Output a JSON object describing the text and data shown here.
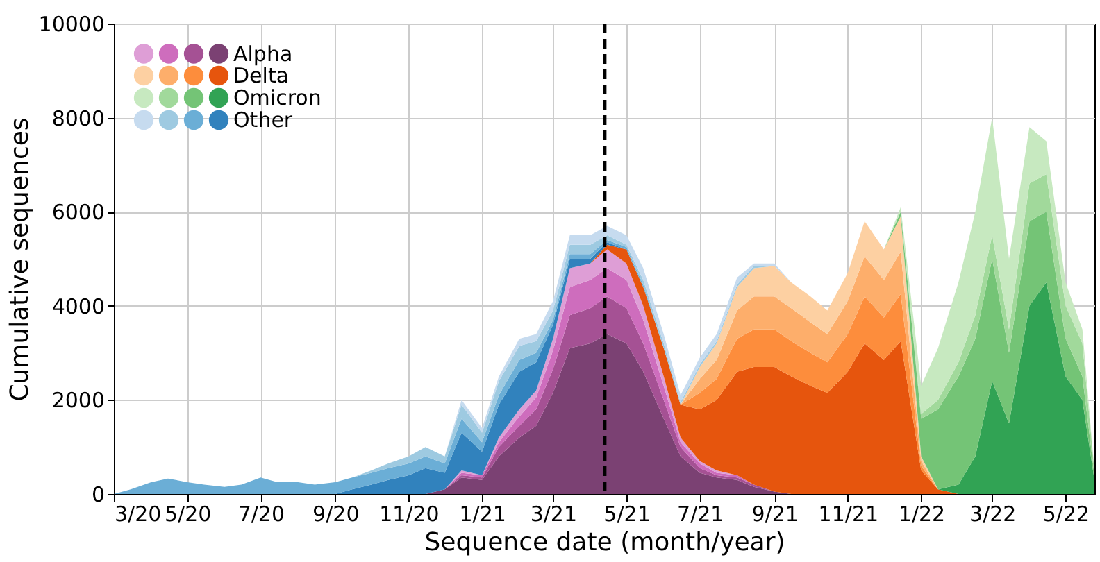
{
  "chart_data": {
    "type": "area",
    "stacked": true,
    "xlabel": "Sequence date (month/year)",
    "ylabel": "Cumulative sequences",
    "x": [
      "2020-03-01",
      "2020-03-15",
      "2020-04-01",
      "2020-04-15",
      "2020-05-01",
      "2020-05-15",
      "2020-06-01",
      "2020-06-15",
      "2020-07-01",
      "2020-07-15",
      "2020-08-01",
      "2020-08-15",
      "2020-09-01",
      "2020-09-15",
      "2020-10-01",
      "2020-10-15",
      "2020-11-01",
      "2020-11-15",
      "2020-12-01",
      "2020-12-15",
      "2021-01-01",
      "2021-01-15",
      "2021-02-01",
      "2021-02-15",
      "2021-03-01",
      "2021-03-15",
      "2021-04-01",
      "2021-04-15",
      "2021-05-01",
      "2021-05-15",
      "2021-06-01",
      "2021-06-15",
      "2021-07-01",
      "2021-07-15",
      "2021-08-01",
      "2021-08-15",
      "2021-09-01",
      "2021-09-15",
      "2021-10-01",
      "2021-10-15",
      "2021-11-01",
      "2021-11-15",
      "2021-12-01",
      "2021-12-15",
      "2022-01-01",
      "2022-01-15",
      "2022-02-01",
      "2022-02-15",
      "2022-03-01",
      "2022-03-15",
      "2022-04-01",
      "2022-04-15",
      "2022-05-01",
      "2022-05-15",
      "2022-05-25"
    ],
    "series": [
      {
        "name": "Alpha",
        "color": "#7b4173",
        "values": [
          null,
          null,
          null,
          null,
          null,
          null,
          null,
          null,
          null,
          null,
          null,
          null,
          null,
          null,
          null,
          null,
          null,
          0,
          100,
          350,
          300,
          800,
          1200,
          1450,
          2150,
          3100,
          3200,
          3400,
          3200,
          2600,
          1600,
          800,
          450,
          350,
          300,
          150,
          50,
          0,
          null,
          null,
          null,
          null,
          null,
          null,
          null,
          null,
          null,
          null,
          null,
          null,
          null,
          null,
          null,
          null,
          null
        ]
      },
      {
        "color": "#a55194",
        "values": [
          null,
          null,
          null,
          null,
          null,
          null,
          null,
          null,
          null,
          null,
          null,
          null,
          null,
          null,
          null,
          null,
          null,
          null,
          0,
          50,
          50,
          200,
          250,
          350,
          500,
          700,
          750,
          800,
          750,
          600,
          400,
          200,
          100,
          50,
          50,
          50,
          0,
          null,
          null,
          null,
          null,
          null,
          null,
          null,
          null,
          null,
          null,
          null,
          null,
          null,
          null,
          null,
          null,
          null,
          null
        ]
      },
      {
        "color": "#ce6dbd",
        "values": [
          null,
          null,
          null,
          null,
          null,
          null,
          null,
          null,
          null,
          null,
          null,
          null,
          null,
          null,
          null,
          null,
          null,
          null,
          0,
          50,
          50,
          100,
          200,
          250,
          400,
          600,
          600,
          600,
          600,
          500,
          300,
          100,
          100,
          50,
          50,
          0,
          null,
          null,
          null,
          null,
          null,
          null,
          null,
          null,
          null,
          null,
          null,
          null,
          null,
          null,
          null,
          null,
          null,
          null,
          null
        ]
      },
      {
        "color": "#de9ed6",
        "values": [
          null,
          null,
          null,
          null,
          null,
          null,
          null,
          null,
          null,
          null,
          null,
          null,
          null,
          null,
          null,
          null,
          null,
          null,
          0,
          50,
          0,
          100,
          150,
          150,
          250,
          400,
          350,
          400,
          350,
          300,
          200,
          100,
          50,
          50,
          0,
          null,
          null,
          null,
          null,
          null,
          null,
          null,
          null,
          null,
          null,
          null,
          null,
          null,
          null,
          null,
          null,
          null,
          null,
          null,
          null
        ]
      },
      {
        "name": "Delta",
        "color": "#e6550d",
        "values": [
          null,
          null,
          null,
          null,
          null,
          null,
          null,
          null,
          null,
          null,
          null,
          null,
          null,
          null,
          null,
          null,
          null,
          null,
          null,
          null,
          null,
          null,
          null,
          null,
          null,
          null,
          0,
          100,
          300,
          400,
          600,
          700,
          1100,
          1500,
          2200,
          2500,
          2650,
          2500,
          2300,
          2150,
          2600,
          3200,
          2850,
          3250,
          500,
          100,
          0,
          null,
          null,
          null,
          null,
          null,
          null,
          null,
          null
        ]
      },
      {
        "color": "#fd8d3c",
        "values": [
          null,
          null,
          null,
          null,
          null,
          null,
          null,
          null,
          null,
          null,
          null,
          null,
          null,
          null,
          null,
          null,
          null,
          null,
          null,
          null,
          null,
          null,
          null,
          null,
          null,
          null,
          null,
          null,
          null,
          null,
          null,
          0,
          350,
          450,
          700,
          800,
          800,
          750,
          700,
          650,
          800,
          1000,
          900,
          1000,
          100,
          0,
          null,
          null,
          null,
          null,
          null,
          null,
          null,
          null,
          null
        ]
      },
      {
        "color": "#fdae6b",
        "values": [
          null,
          null,
          null,
          null,
          null,
          null,
          null,
          null,
          null,
          null,
          null,
          null,
          null,
          null,
          null,
          null,
          null,
          null,
          null,
          null,
          null,
          null,
          null,
          null,
          null,
          null,
          null,
          null,
          null,
          null,
          null,
          0,
          300,
          400,
          600,
          700,
          700,
          700,
          650,
          600,
          700,
          850,
          800,
          900,
          100,
          0,
          null,
          null,
          null,
          null,
          null,
          null,
          null,
          null,
          null
        ]
      },
      {
        "color": "#fdd0a2",
        "values": [
          null,
          null,
          null,
          null,
          null,
          null,
          null,
          null,
          null,
          null,
          null,
          null,
          null,
          null,
          null,
          null,
          null,
          null,
          null,
          null,
          null,
          null,
          null,
          null,
          null,
          null,
          null,
          null,
          null,
          null,
          null,
          0,
          250,
          350,
          500,
          600,
          650,
          550,
          550,
          500,
          600,
          750,
          650,
          750,
          100,
          0,
          null,
          null,
          null,
          null,
          null,
          null,
          null,
          null,
          null
        ]
      },
      {
        "name": "Omicron",
        "color": "#31a354",
        "values": [
          null,
          null,
          null,
          null,
          null,
          null,
          null,
          null,
          null,
          null,
          null,
          null,
          null,
          null,
          null,
          null,
          null,
          null,
          null,
          null,
          null,
          null,
          null,
          null,
          null,
          null,
          null,
          null,
          null,
          null,
          null,
          null,
          null,
          null,
          null,
          null,
          null,
          null,
          null,
          null,
          null,
          null,
          null,
          null,
          null,
          0,
          200,
          800,
          2400,
          1500,
          4000,
          4500,
          2500,
          2000,
          300
        ]
      },
      {
        "color": "#74c476",
        "values": [
          null,
          null,
          null,
          null,
          null,
          null,
          null,
          null,
          null,
          null,
          null,
          null,
          null,
          null,
          null,
          null,
          null,
          null,
          null,
          null,
          null,
          null,
          null,
          null,
          null,
          null,
          null,
          null,
          null,
          null,
          null,
          null,
          null,
          null,
          null,
          null,
          null,
          null,
          null,
          null,
          null,
          null,
          0,
          100,
          800,
          1700,
          2300,
          2500,
          2600,
          1500,
          1800,
          1500,
          800,
          500,
          100
        ]
      },
      {
        "color": "#a1d99b",
        "values": [
          null,
          null,
          null,
          null,
          null,
          null,
          null,
          null,
          null,
          null,
          null,
          null,
          null,
          null,
          null,
          null,
          null,
          null,
          null,
          null,
          null,
          null,
          null,
          null,
          null,
          null,
          null,
          null,
          null,
          null,
          null,
          null,
          null,
          null,
          null,
          null,
          null,
          null,
          null,
          null,
          null,
          null,
          null,
          0,
          100,
          200,
          300,
          500,
          500,
          500,
          800,
          800,
          700,
          700,
          100
        ]
      },
      {
        "color": "#c7e9c0",
        "values": [
          null,
          null,
          null,
          null,
          null,
          null,
          null,
          null,
          null,
          null,
          null,
          null,
          null,
          null,
          null,
          null,
          null,
          null,
          null,
          null,
          null,
          null,
          null,
          null,
          null,
          null,
          null,
          null,
          null,
          null,
          null,
          null,
          null,
          null,
          null,
          null,
          null,
          null,
          null,
          null,
          null,
          null,
          0,
          100,
          600,
          1100,
          1700,
          2200,
          2500,
          1500,
          1200,
          700,
          500,
          300,
          0
        ]
      },
      {
        "name": "Other",
        "color": "#3182bd",
        "values": [
          null,
          null,
          null,
          null,
          null,
          null,
          null,
          null,
          null,
          null,
          null,
          null,
          0,
          100,
          200,
          300,
          400,
          550,
          350,
          800,
          500,
          700,
          800,
          600,
          300,
          200,
          100,
          50,
          0,
          null,
          null,
          null,
          null,
          null,
          null,
          null,
          null,
          null,
          null,
          null,
          null,
          null,
          null,
          null,
          null,
          null,
          null,
          null,
          null,
          null,
          null,
          null,
          null,
          null,
          null
        ]
      },
      {
        "color": "#6baed6",
        "values": [
          0,
          100,
          250,
          330,
          250,
          200,
          150,
          200,
          350,
          250,
          250,
          200,
          250,
          250,
          250,
          250,
          250,
          250,
          200,
          300,
          200,
          200,
          250,
          200,
          100,
          100,
          100,
          50,
          50,
          50,
          0,
          null,
          null,
          null,
          null,
          null,
          null,
          null,
          null,
          null,
          null,
          null,
          null,
          null,
          null,
          null,
          null,
          null,
          null,
          null,
          null,
          null,
          null,
          null,
          null
        ]
      },
      {
        "color": "#9ecae1",
        "values": [
          null,
          null,
          null,
          null,
          null,
          null,
          null,
          null,
          null,
          null,
          null,
          null,
          null,
          0,
          50,
          100,
          150,
          200,
          150,
          300,
          200,
          300,
          300,
          250,
          200,
          200,
          200,
          100,
          50,
          100,
          100,
          50,
          50,
          50,
          50,
          50,
          0,
          null,
          null,
          null,
          null,
          null,
          null,
          null,
          null,
          null,
          null,
          null,
          null,
          null,
          null,
          null,
          null,
          null,
          null
        ]
      },
      {
        "color": "#c6dbef",
        "values": [
          null,
          null,
          null,
          null,
          null,
          null,
          null,
          null,
          null,
          null,
          null,
          null,
          null,
          null,
          null,
          null,
          null,
          null,
          0,
          100,
          100,
          100,
          150,
          150,
          200,
          200,
          200,
          200,
          200,
          250,
          200,
          150,
          150,
          150,
          150,
          50,
          50,
          0,
          null,
          null,
          null,
          null,
          null,
          null,
          null,
          null,
          null,
          null,
          null,
          null,
          null,
          null,
          null,
          null,
          null
        ]
      }
    ],
    "xlim": [
      "2020-03-01",
      "2022-05-25"
    ],
    "xticks": [
      {
        "value": "2020-03-01",
        "label": "3/20"
      },
      {
        "value": "2020-05-01",
        "label": "5/20"
      },
      {
        "value": "2020-07-01",
        "label": "7/20"
      },
      {
        "value": "2020-09-01",
        "label": "9/20"
      },
      {
        "value": "2020-11-01",
        "label": "11/20"
      },
      {
        "value": "2021-01-01",
        "label": "1/21"
      },
      {
        "value": "2021-03-01",
        "label": "3/21"
      },
      {
        "value": "2021-05-01",
        "label": "5/21"
      },
      {
        "value": "2021-07-01",
        "label": "7/21"
      },
      {
        "value": "2021-09-01",
        "label": "9/21"
      },
      {
        "value": "2021-11-01",
        "label": "11/21"
      },
      {
        "value": "2022-01-01",
        "label": "1/22"
      },
      {
        "value": "2022-03-01",
        "label": "3/22"
      },
      {
        "value": "2022-05-01",
        "label": "5/22"
      }
    ],
    "ylim": [
      0,
      10000
    ],
    "yticks": [
      0,
      2000,
      4000,
      6000,
      8000,
      10000
    ],
    "ref_lines": [
      {
        "axis": "x",
        "value": "2021-04-13",
        "color": "#000000",
        "line_style": "dashed"
      }
    ],
    "grid": true,
    "legend": "top left"
  }
}
